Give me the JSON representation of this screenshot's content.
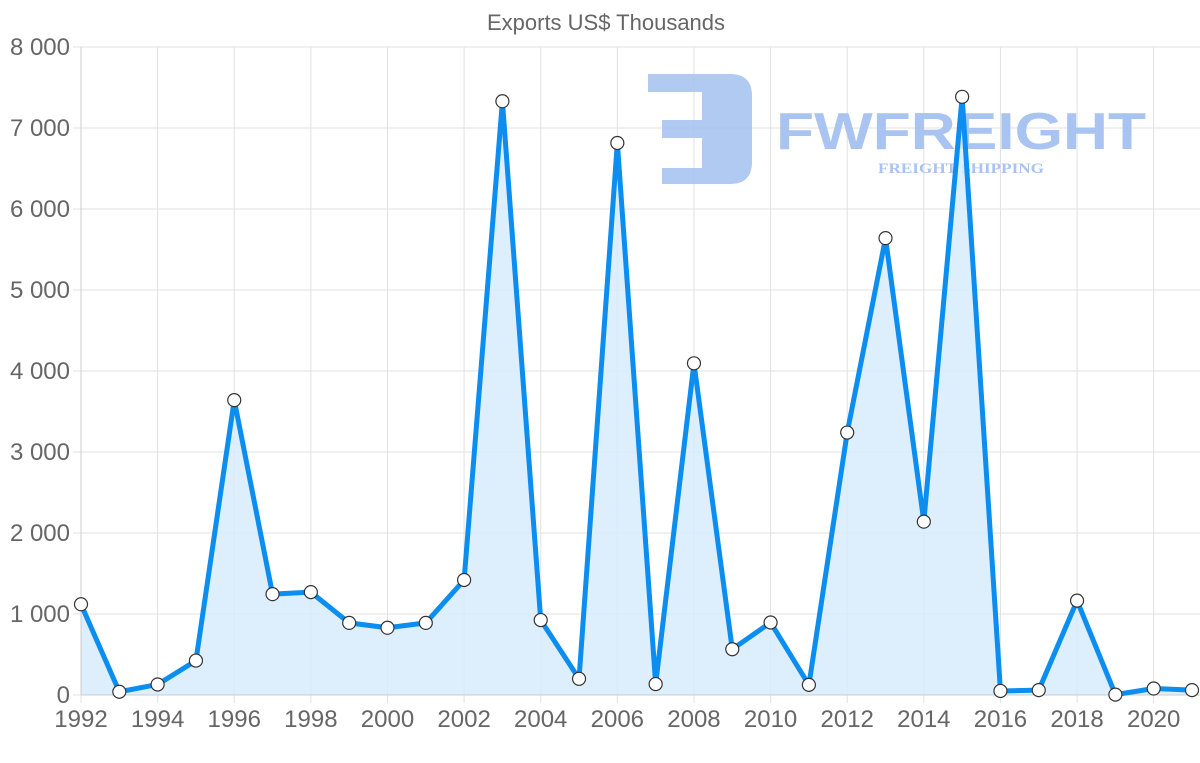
{
  "chart_data": {
    "type": "line",
    "title": "Exports US$ Thousands",
    "xlabel": "",
    "ylabel": "",
    "ylim": [
      0,
      8000
    ],
    "y_ticks": [
      "0",
      "1 000",
      "2 000",
      "3 000",
      "4 000",
      "5 000",
      "6 000",
      "7 000",
      "8 000"
    ],
    "x_tick_labels": [
      "1992",
      "1994",
      "1996",
      "1998",
      "2000",
      "2002",
      "2004",
      "2006",
      "2008",
      "2010",
      "2012",
      "2014",
      "2016",
      "2018",
      "2020"
    ],
    "grid": true,
    "legend": null,
    "fill": true,
    "x": [
      1992,
      1993,
      1994,
      1995,
      1996,
      1997,
      1998,
      1999,
      2000,
      2001,
      2002,
      2003,
      2004,
      2005,
      2006,
      2007,
      2008,
      2009,
      2010,
      2011,
      2012,
      2013,
      2014,
      2015,
      2016,
      2017,
      2018,
      2019,
      2020,
      2021
    ],
    "series": [
      {
        "name": "Exports",
        "values": [
          1120,
          40,
          130,
          425,
          3640,
          1245,
          1270,
          890,
          830,
          890,
          1420,
          7330,
          925,
          200,
          6815,
          135,
          4095,
          565,
          895,
          125,
          3240,
          5640,
          2140,
          7385,
          50,
          60,
          1165,
          5,
          80,
          60
        ]
      }
    ]
  },
  "colors": {
    "line": "#0b8ef0",
    "fill": "#d7ebfb",
    "point_fill": "#ffffff",
    "point_stroke": "#333333",
    "watermark": "#a9c4f0"
  },
  "watermark": {
    "brand": "FWFREIGHT",
    "tagline": "FREIGHT SHIPPING"
  }
}
